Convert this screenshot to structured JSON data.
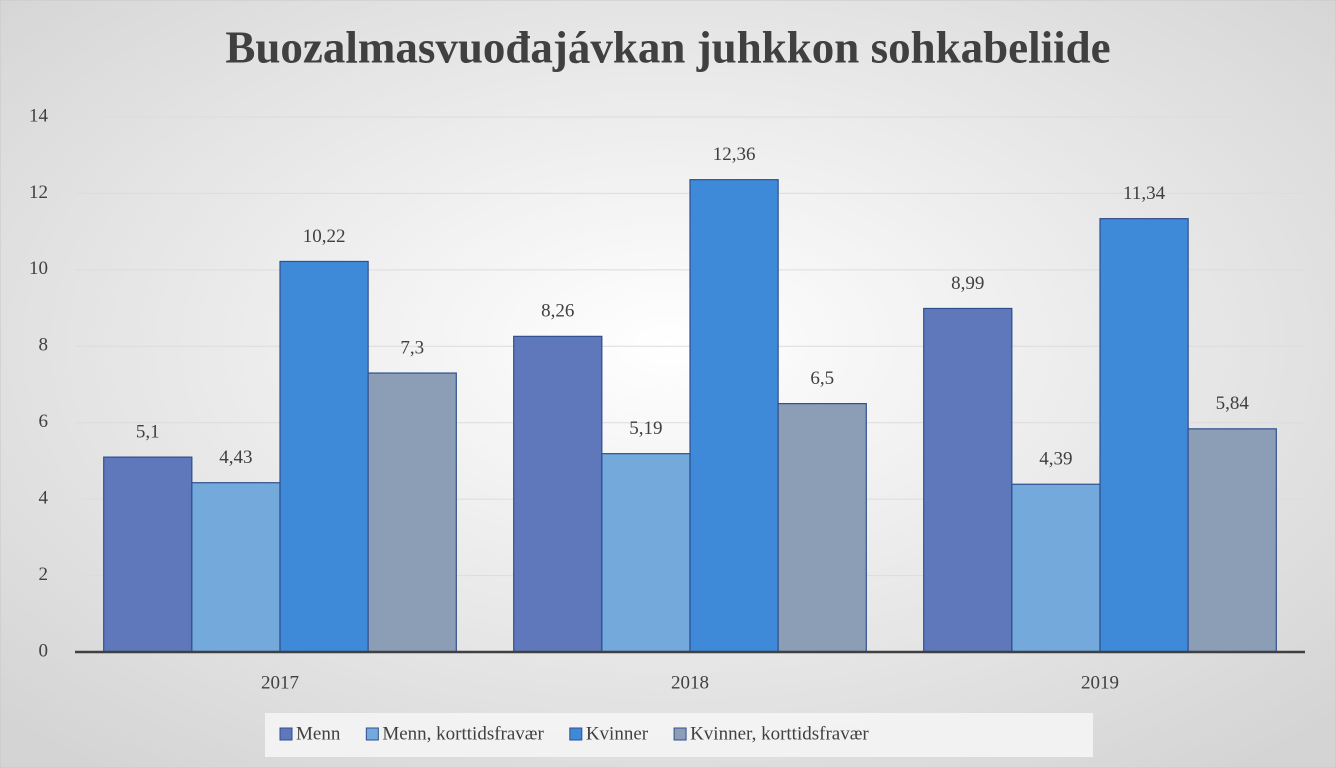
{
  "chart_data": {
    "type": "bar",
    "title": "Buozalmasvuođajávkan juhkkon sohkabeliide",
    "categories": [
      "2017",
      "2018",
      "2019"
    ],
    "series": [
      {
        "name": "Menn",
        "color": "#5f78bb",
        "values": [
          5.1,
          8.26,
          8.99
        ],
        "value_labels": [
          "5,1",
          "8,26",
          "8,99"
        ]
      },
      {
        "name": "Menn, korttidsfravær",
        "color": "#74a9db",
        "values": [
          4.43,
          5.19,
          4.39
        ],
        "value_labels": [
          "4,43",
          "5,19",
          "4,39"
        ]
      },
      {
        "name": "Kvinner",
        "color": "#3f8ad8",
        "values": [
          10.22,
          12.36,
          11.34
        ],
        "value_labels": [
          "10,22",
          "12,36",
          "11,34"
        ]
      },
      {
        "name": "Kvinner, korttidsfravær",
        "color": "#8c9db6",
        "values": [
          7.3,
          6.5,
          5.84
        ],
        "value_labels": [
          "7,3",
          "6,5",
          "5,84"
        ]
      }
    ],
    "ylim": [
      0,
      14
    ],
    "yticks": [
      0,
      2,
      4,
      6,
      8,
      10,
      12,
      14
    ],
    "grid": true,
    "legend": "bottom"
  }
}
